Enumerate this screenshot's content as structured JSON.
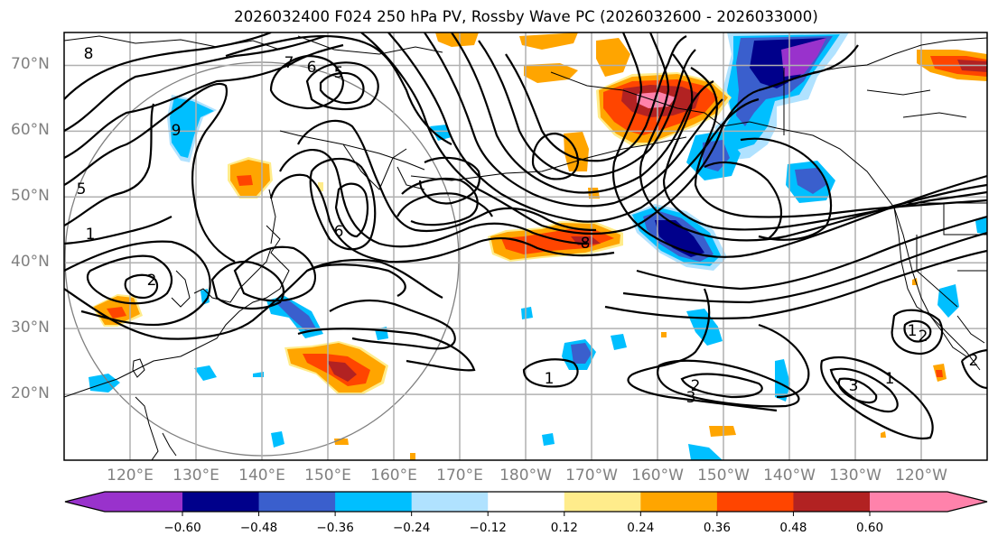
{
  "title": "2026032400 F024 250 hPa PV, Rossby Wave PC (2026032600 - 2026033000)",
  "map": {
    "projection": "cylindrical",
    "extent": {
      "lon_min": "110°E",
      "lon_max": "110°W",
      "lat_min": "10°N",
      "lat_max": "75°N"
    },
    "lat_labels": [
      "70°N",
      "60°N",
      "50°N",
      "40°N",
      "30°N",
      "20°N"
    ],
    "lon_labels": [
      "120°E",
      "130°E",
      "140°E",
      "150°E",
      "160°E",
      "170°E",
      "180°W",
      "170°W",
      "160°W",
      "150°W",
      "140°W",
      "130°W",
      "120°W"
    ],
    "gridline_color": "#b0b0b0",
    "coastline_color": "#000000",
    "range_circle_color": "#808080",
    "contour_field": "250 hPa PV (PVU)",
    "contour_labels": [
      "1",
      "2",
      "3",
      "5",
      "6",
      "7",
      "8",
      "9",
      "2",
      "1",
      "5",
      "6",
      "8",
      "1",
      "2",
      "3",
      "1",
      "2"
    ],
    "shaded_field": "Rossby Wave PC"
  },
  "colorbar": {
    "extend": "both",
    "ticks": [
      "−0.60",
      "−0.48",
      "−0.36",
      "−0.24",
      "−0.12",
      "0.12",
      "0.24",
      "0.36",
      "0.48",
      "0.60"
    ],
    "bins": [
      {
        "range": "< -0.60",
        "color": "#9932cc"
      },
      {
        "range": "-0.60 to -0.48",
        "color": "#00008b"
      },
      {
        "range": "-0.48 to -0.36",
        "color": "#3a5fcd"
      },
      {
        "range": "-0.36 to -0.24",
        "color": "#00bfff"
      },
      {
        "range": "-0.24 to -0.12",
        "color": "#b0e2ff"
      },
      {
        "range": "-0.12 to 0.12",
        "color": "#ffffff"
      },
      {
        "range": "0.12 to 0.24",
        "color": "#ffec8b"
      },
      {
        "range": "0.24 to 0.36",
        "color": "#ffa500"
      },
      {
        "range": "0.36 to 0.48",
        "color": "#ff4500"
      },
      {
        "range": "0.48 to 0.60",
        "color": "#b22222"
      },
      {
        "range": "> 0.60",
        "color": "#ff82ab"
      }
    ]
  }
}
